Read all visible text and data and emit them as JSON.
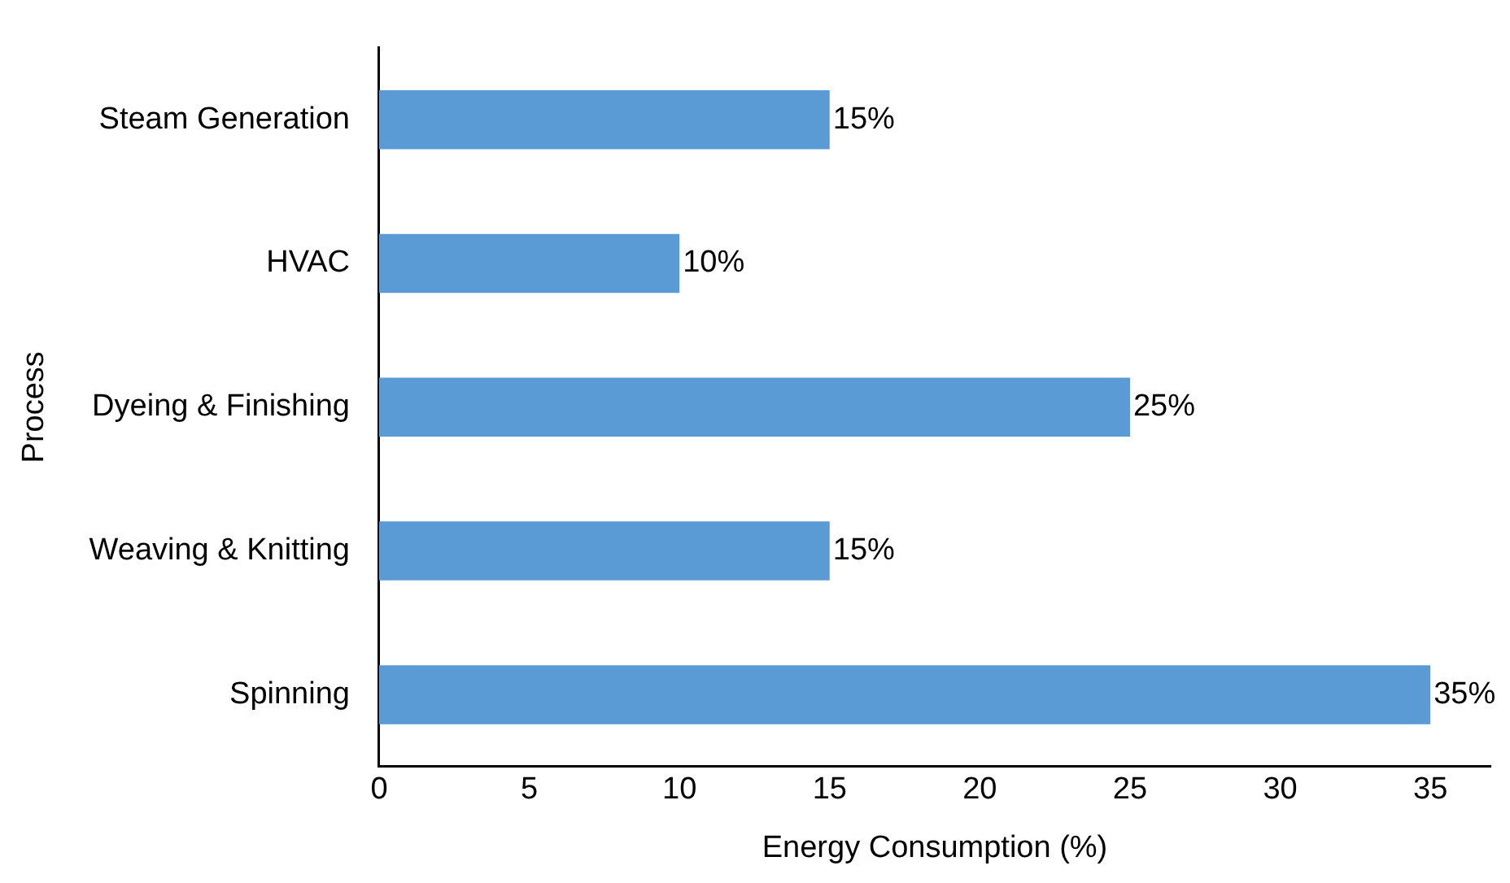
{
  "chart_data": {
    "type": "bar",
    "orientation": "horizontal",
    "xlabel": "Energy Consumption (%)",
    "ylabel": "Process",
    "categories": [
      "Steam Generation",
      "HVAC",
      "Dyeing & Finishing",
      "Weaving & Knitting",
      "Spinning"
    ],
    "values": [
      15,
      10,
      25,
      15,
      35
    ],
    "value_labels": [
      "15%",
      "10%",
      "25%",
      "15%",
      "35%"
    ],
    "color": "#5b9bd5",
    "xlim": [
      0,
      37
    ],
    "xticks": [
      0,
      5,
      10,
      15,
      20,
      25,
      30,
      35
    ],
    "grid": false,
    "legend": false
  }
}
